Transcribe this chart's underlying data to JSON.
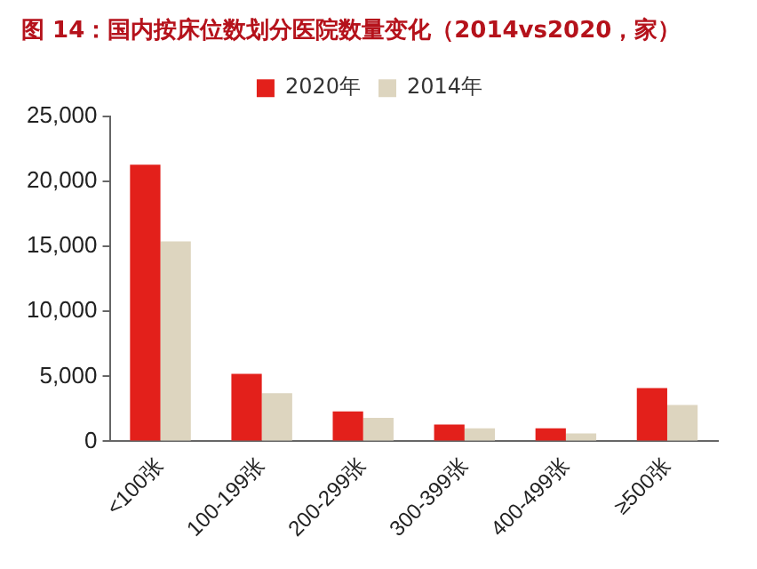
{
  "chart_data": {
    "type": "bar",
    "title": "图 14：国内按床位数划分医院数量变化（2014vs2020，家）",
    "categories": [
      "<100张",
      "100-199张",
      "200-299张",
      "300-399张",
      "400-499张",
      "≥500张"
    ],
    "series": [
      {
        "name": "2020年",
        "color": "#e3201b",
        "values": [
          21300,
          5200,
          2300,
          1300,
          1000,
          4100
        ]
      },
      {
        "name": "2014年",
        "color": "#ddd5bf",
        "values": [
          15400,
          3700,
          1800,
          1000,
          600,
          2800
        ]
      }
    ],
    "ylim": [
      0,
      25000
    ],
    "yticks": [
      {
        "value": 0,
        "label": "0"
      },
      {
        "value": 5000,
        "label": "5,000"
      },
      {
        "value": 10000,
        "label": "10,000"
      },
      {
        "value": 15000,
        "label": "15,000"
      },
      {
        "value": 20000,
        "label": "20,000"
      },
      {
        "value": 25000,
        "label": "25,000"
      }
    ],
    "grid": false,
    "legend": "top"
  }
}
